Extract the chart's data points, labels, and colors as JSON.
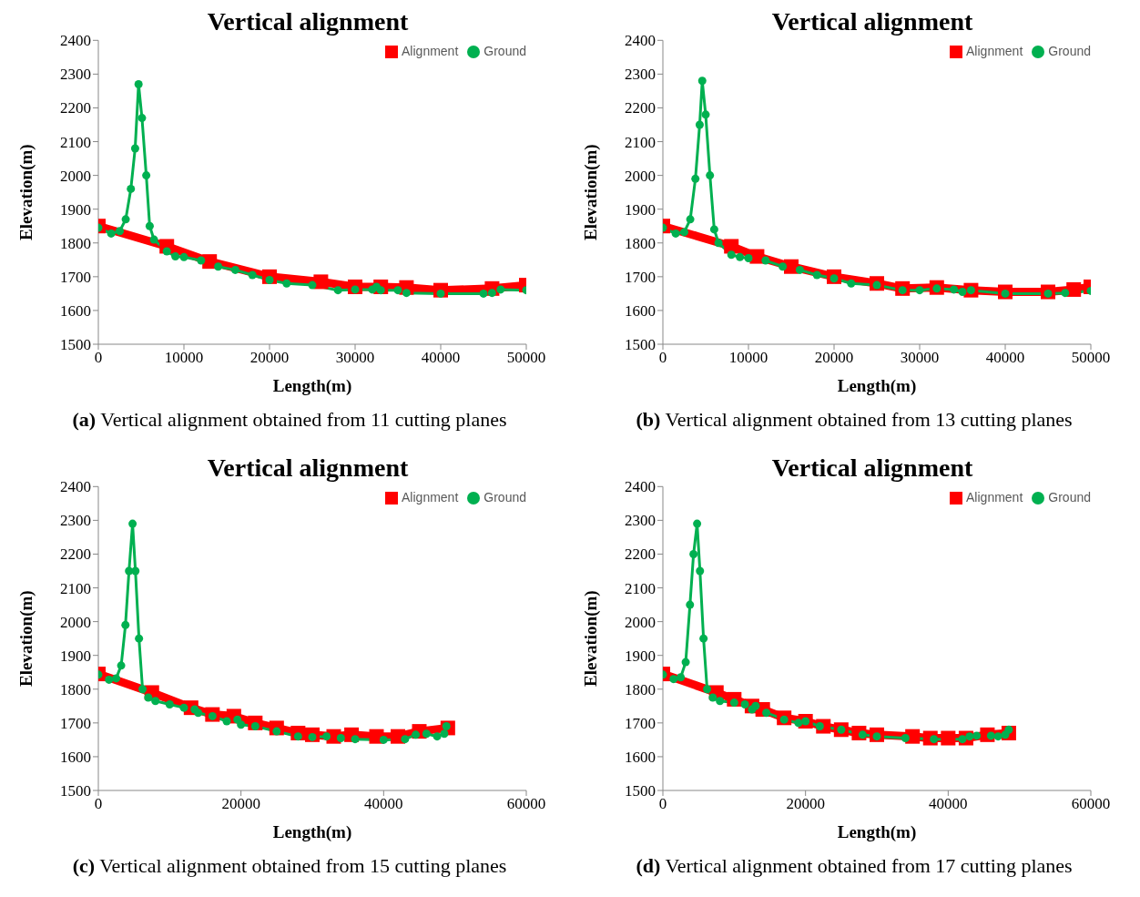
{
  "chart_data": [
    {
      "type": "line",
      "title": "Vertical alignment",
      "xlabel": "Length(m)",
      "ylabel": "Elevation(m)",
      "annotations": [
        "(a) Vertical alignment obtained from 11 cutting planes"
      ],
      "xlim": [
        0,
        50000
      ],
      "xticks": [
        0,
        10000,
        20000,
        30000,
        40000,
        50000
      ],
      "ylim": [
        1500,
        2400
      ],
      "yticks": [
        1500,
        1600,
        1700,
        1800,
        1900,
        2000,
        2100,
        2200,
        2300,
        2400
      ],
      "legend": "top right",
      "grid": false,
      "series": [
        {
          "name": "Alignment",
          "color": "#ff0000",
          "marker": "square",
          "x": [
            0,
            8000,
            13000,
            20000,
            26000,
            30000,
            33000,
            36000,
            40000,
            46000,
            50000
          ],
          "values": [
            1850,
            1790,
            1745,
            1700,
            1685,
            1670,
            1670,
            1668,
            1660,
            1665,
            1675
          ]
        },
        {
          "name": "Ground",
          "color": "#00b050",
          "marker": "circle",
          "x": [
            0,
            1500,
            2500,
            3200,
            3800,
            4300,
            4700,
            5100,
            5600,
            6000,
            6500,
            8000,
            9000,
            10000,
            12000,
            14000,
            16000,
            18000,
            20000,
            22000,
            25000,
            28000,
            30000,
            32000,
            32500,
            33000,
            35000,
            36000,
            40000,
            45000,
            46000,
            47000,
            50000
          ],
          "values": [
            1845,
            1828,
            1835,
            1870,
            1960,
            2080,
            2270,
            2170,
            2000,
            1850,
            1810,
            1775,
            1760,
            1758,
            1748,
            1730,
            1720,
            1705,
            1690,
            1680,
            1675,
            1660,
            1662,
            1662,
            1670,
            1660,
            1660,
            1652,
            1650,
            1650,
            1652,
            1662,
            1660
          ]
        }
      ]
    },
    {
      "type": "line",
      "title": "Vertical alignment",
      "xlabel": "Length(m)",
      "ylabel": "Elevation(m)",
      "annotations": [
        "(b) Vertical alignment obtained from 13 cutting planes"
      ],
      "xlim": [
        0,
        50000
      ],
      "xticks": [
        0,
        10000,
        20000,
        30000,
        40000,
        50000
      ],
      "ylim": [
        1500,
        2400
      ],
      "yticks": [
        1500,
        1600,
        1700,
        1800,
        1900,
        2000,
        2100,
        2200,
        2300,
        2400
      ],
      "legend": "top right",
      "grid": false,
      "series": [
        {
          "name": "Alignment",
          "color": "#ff0000",
          "marker": "square",
          "x": [
            0,
            8000,
            11000,
            15000,
            20000,
            25000,
            28000,
            32000,
            36000,
            40000,
            45000,
            48000,
            50000
          ],
          "values": [
            1850,
            1790,
            1760,
            1730,
            1700,
            1680,
            1665,
            1668,
            1660,
            1655,
            1655,
            1662,
            1670
          ]
        },
        {
          "name": "Ground",
          "color": "#00b050",
          "marker": "circle",
          "x": [
            0,
            1500,
            2500,
            3200,
            3800,
            4300,
            4600,
            5000,
            5500,
            6000,
            6500,
            8000,
            9000,
            10000,
            12000,
            14000,
            16000,
            18000,
            20000,
            22000,
            25000,
            28000,
            30000,
            32000,
            34000,
            35000,
            36000,
            40000,
            45000,
            47000,
            50000
          ],
          "values": [
            1845,
            1828,
            1832,
            1870,
            1990,
            2150,
            2280,
            2180,
            2000,
            1840,
            1800,
            1765,
            1758,
            1755,
            1748,
            1730,
            1720,
            1705,
            1695,
            1680,
            1675,
            1660,
            1660,
            1665,
            1662,
            1655,
            1660,
            1650,
            1650,
            1652,
            1658
          ]
        }
      ]
    },
    {
      "type": "line",
      "title": "Vertical alignment",
      "xlabel": "Length(m)",
      "ylabel": "Elevation(m)",
      "annotations": [
        "(c) Vertical alignment obtained from 15 cutting planes"
      ],
      "xlim": [
        0,
        60000
      ],
      "xticks": [
        0,
        20000,
        40000,
        60000
      ],
      "ylim": [
        1500,
        2400
      ],
      "yticks": [
        1500,
        1600,
        1700,
        1800,
        1900,
        2000,
        2100,
        2200,
        2300,
        2400
      ],
      "legend": "top right",
      "grid": false,
      "series": [
        {
          "name": "Alignment",
          "color": "#ff0000",
          "marker": "square",
          "x": [
            0,
            7500,
            13000,
            16000,
            19000,
            22000,
            25000,
            28000,
            30000,
            33000,
            35500,
            39000,
            42000,
            45000,
            49000
          ],
          "values": [
            1845,
            1790,
            1745,
            1725,
            1720,
            1700,
            1685,
            1670,
            1665,
            1660,
            1665,
            1660,
            1660,
            1675,
            1685
          ]
        },
        {
          "name": "Ground",
          "color": "#00b050",
          "marker": "circle",
          "x": [
            0,
            1500,
            2500,
            3200,
            3800,
            4300,
            4800,
            5200,
            5700,
            6200,
            7000,
            8000,
            10000,
            12000,
            13500,
            14000,
            16000,
            18000,
            19500,
            20000,
            22000,
            25000,
            28000,
            30000,
            32000,
            34000,
            36000,
            40000,
            43000,
            44500,
            46000,
            47500,
            48500,
            48800
          ],
          "values": [
            1843,
            1828,
            1832,
            1870,
            1990,
            2150,
            2290,
            2150,
            1950,
            1800,
            1775,
            1765,
            1755,
            1745,
            1740,
            1730,
            1720,
            1705,
            1710,
            1695,
            1690,
            1675,
            1660,
            1658,
            1660,
            1655,
            1652,
            1650,
            1652,
            1665,
            1668,
            1660,
            1668,
            1690
          ]
        }
      ]
    },
    {
      "type": "line",
      "title": "Vertical alignment",
      "xlabel": "Length(m)",
      "ylabel": "Elevation(m)",
      "annotations": [
        "(d) Vertical alignment obtained from 17 cutting planes"
      ],
      "xlim": [
        0,
        60000
      ],
      "xticks": [
        0,
        20000,
        40000,
        60000
      ],
      "ylim": [
        1500,
        2400
      ],
      "yticks": [
        1500,
        1600,
        1700,
        1800,
        1900,
        2000,
        2100,
        2200,
        2300,
        2400
      ],
      "legend": "top right",
      "grid": false,
      "series": [
        {
          "name": "Alignment",
          "color": "#ff0000",
          "marker": "square",
          "x": [
            0,
            7500,
            10000,
            12500,
            14000,
            17000,
            20000,
            22500,
            25000,
            27500,
            30000,
            35000,
            37500,
            40000,
            42500,
            45500,
            48500
          ],
          "values": [
            1845,
            1790,
            1770,
            1750,
            1740,
            1715,
            1705,
            1690,
            1680,
            1670,
            1665,
            1660,
            1655,
            1655,
            1655,
            1665,
            1670
          ]
        },
        {
          "name": "Ground",
          "color": "#00b050",
          "marker": "circle",
          "x": [
            0,
            1500,
            2500,
            3200,
            3800,
            4300,
            4800,
            5200,
            5700,
            6200,
            7000,
            8000,
            10000,
            11500,
            12500,
            13000,
            14500,
            17000,
            19000,
            20000,
            22000,
            25000,
            28000,
            30000,
            34000,
            38000,
            42000,
            43000,
            44000,
            46000,
            47000,
            48000,
            48500
          ],
          "values": [
            1843,
            1830,
            1835,
            1880,
            2050,
            2200,
            2290,
            2150,
            1950,
            1800,
            1775,
            1765,
            1760,
            1755,
            1740,
            1750,
            1730,
            1710,
            1700,
            1705,
            1690,
            1680,
            1665,
            1660,
            1655,
            1652,
            1652,
            1660,
            1662,
            1662,
            1660,
            1665,
            1680
          ]
        }
      ]
    }
  ]
}
